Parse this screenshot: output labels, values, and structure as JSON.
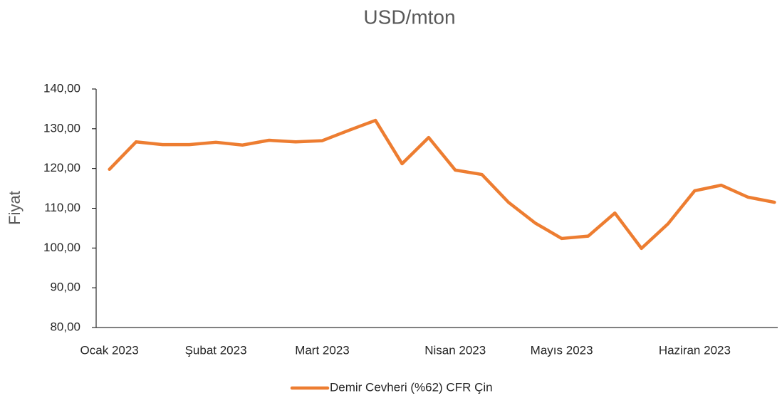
{
  "chart_data": {
    "type": "line",
    "title": "USD/mton",
    "y_label": "Fiyat",
    "categories": [
      "Ocak 2023",
      null,
      null,
      null,
      "Şubat 2023",
      null,
      null,
      null,
      "Mart 2023",
      null,
      null,
      null,
      null,
      "Nisan 2023",
      null,
      null,
      null,
      "Mayıs 2023",
      null,
      null,
      null,
      null,
      "Haziran 2023",
      null,
      null,
      null
    ],
    "series": [
      {
        "name": "Demir Cevheri (%62) CFR Çin",
        "color": "#ED7D31",
        "values": [
          119.8,
          126.7,
          126.0,
          126.0,
          126.6,
          125.9,
          127.1,
          126.7,
          127.0,
          129.6,
          132.1,
          121.2,
          127.8,
          119.6,
          118.5,
          111.5,
          106.3,
          102.4,
          103.0,
          108.8,
          99.9,
          106.1,
          114.4,
          115.8,
          112.8,
          111.5
        ]
      }
    ],
    "ylim": [
      80,
      140
    ],
    "yticks": [
      {
        "value": 80,
        "label": "80,00"
      },
      {
        "value": 90,
        "label": "90,00"
      },
      {
        "value": 100,
        "label": "100,00"
      },
      {
        "value": 110,
        "label": "110,00"
      },
      {
        "value": 120,
        "label": "120,00"
      },
      {
        "value": 130,
        "label": "130,00"
      },
      {
        "value": 140,
        "label": "140,00"
      }
    ],
    "legend": "bottom"
  }
}
